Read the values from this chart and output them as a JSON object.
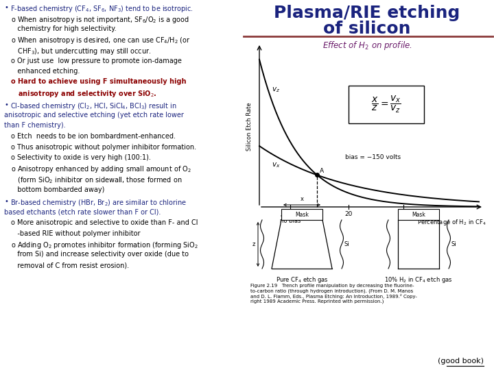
{
  "title_line1": "Plasma/RIE etching",
  "title_line2": "of silicon",
  "title_color": "#1a237e",
  "title_fontsize": 18,
  "effect_label": "Effect of H$_2$ on profile.",
  "effect_color": "#6a1b6a",
  "divider_color": "#8b3a3a",
  "bg_color": "#ffffff",
  "good_book": "(good book)",
  "figure_caption": "Figure 2.19   Trench profile manipulation by decreasing the fluorine-\nto-carbon ratio (through hydrogen introduction). (From D. M. Manos\nand D. L. Flamm, Eds., Plasma Etching: An Introduction, 1989.² Copy-\nright 1989 Academic Press. Reprinted with permission.)"
}
